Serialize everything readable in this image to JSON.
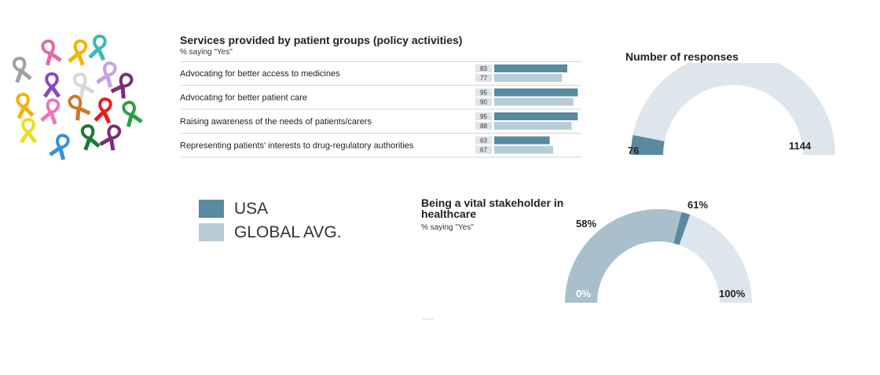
{
  "colors": {
    "usa": "#5a8aa0",
    "global": "#b8ccd6",
    "gauge_track": "#dde6ec",
    "gauge_fill": "#a9bfcb",
    "text": "#222222"
  },
  "legend": {
    "usa_label": "USA",
    "global_label": "GLOBAL AVG."
  },
  "chart_data": [
    {
      "type": "bar",
      "orientation": "horizontal",
      "title": "Services provided by patient groups (policy activities)",
      "subtitle": "% saying \"Yes\"",
      "categories": [
        "Advocating for better access to medicines",
        "Advocating for better patient care",
        "Raising awareness of the needs of patients/carers",
        "Representing patients' interests to drug-regulatory authorities"
      ],
      "series": [
        {
          "name": "USA",
          "values": [
            83,
            95,
            95,
            63
          ]
        },
        {
          "name": "GLOBAL AVG.",
          "values": [
            77,
            90,
            88,
            67
          ]
        }
      ],
      "xlim": [
        0,
        100
      ]
    },
    {
      "type": "gauge",
      "title": "Number of responses",
      "values": [
        76,
        1144
      ],
      "labels": [
        "76",
        "1144"
      ]
    },
    {
      "type": "gauge",
      "title": "Being a vital stakeholder in healthcare",
      "subtitle": "% saying \"Yes\"",
      "series": [
        {
          "name": "GLOBAL AVG.",
          "value": 58,
          "label": "58%"
        },
        {
          "name": "USA",
          "value": 61,
          "label": "61%"
        }
      ],
      "range": [
        0,
        100
      ],
      "range_labels": [
        "0%",
        "100%"
      ]
    }
  ]
}
